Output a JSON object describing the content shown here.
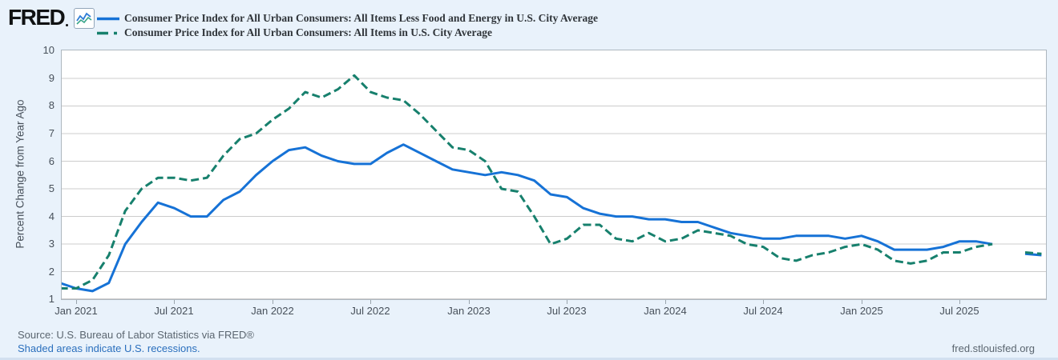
{
  "header": {
    "logo_text": "FRED",
    "logo_icon": "line-chart-icon"
  },
  "footer": {
    "source": "Source: U.S. Bureau of Labor Statistics via FRED®",
    "recession_note": "Shaded areas indicate U.S. recessions.",
    "site_url": "fred.stlouisfed.org"
  },
  "chart_data": {
    "type": "line",
    "title": "",
    "xlabel": "",
    "ylabel": "Percent Change from Year Ago",
    "ylim": [
      1,
      10
    ],
    "grid": true,
    "legend_position": "top-left",
    "background": {
      "page": "#e9f2fb",
      "plot": "#ffffff",
      "gridline": "#cccccc"
    },
    "y_tick_labels": [
      "1",
      "2",
      "3",
      "4",
      "5",
      "6",
      "7",
      "8",
      "9",
      "10"
    ],
    "x_tick_labels": [
      "Jan 2021",
      "Jul 2021",
      "Jan 2022",
      "Jul 2022",
      "Jan 2023",
      "Jul 2023",
      "Jan 2024",
      "Jul 2024",
      "Jan 2025",
      "Jul 2025"
    ],
    "data_gap_month": "2025-10",
    "x_months": [
      "2020-12",
      "2021-01",
      "2021-02",
      "2021-03",
      "2021-04",
      "2021-05",
      "2021-06",
      "2021-07",
      "2021-08",
      "2021-09",
      "2021-10",
      "2021-11",
      "2021-12",
      "2022-01",
      "2022-02",
      "2022-03",
      "2022-04",
      "2022-05",
      "2022-06",
      "2022-07",
      "2022-08",
      "2022-09",
      "2022-10",
      "2022-11",
      "2022-12",
      "2023-01",
      "2023-02",
      "2023-03",
      "2023-04",
      "2023-05",
      "2023-06",
      "2023-07",
      "2023-08",
      "2023-09",
      "2023-10",
      "2023-11",
      "2023-12",
      "2024-01",
      "2024-02",
      "2024-03",
      "2024-04",
      "2024-05",
      "2024-06",
      "2024-07",
      "2024-08",
      "2024-09",
      "2024-10",
      "2024-11",
      "2024-12",
      "2025-01",
      "2025-02",
      "2025-03",
      "2025-04",
      "2025-05",
      "2025-06",
      "2025-07",
      "2025-08",
      "2025-09",
      "2025-10",
      "2025-11",
      "2025-12"
    ],
    "series": [
      {
        "name": "Consumer Price Index for All Urban Consumers: All Items Less Food and Energy in U.S. City Average",
        "style": "solid",
        "color": "#1672d6",
        "values": [
          1.6,
          1.4,
          1.3,
          1.6,
          3.0,
          3.8,
          4.5,
          4.3,
          4.0,
          4.0,
          4.6,
          4.9,
          5.5,
          6.0,
          6.4,
          6.5,
          6.2,
          6.0,
          5.9,
          5.9,
          6.3,
          6.6,
          6.3,
          6.0,
          5.7,
          5.6,
          5.5,
          5.6,
          5.5,
          5.3,
          4.8,
          4.7,
          4.3,
          4.1,
          4.0,
          4.0,
          3.9,
          3.9,
          3.8,
          3.8,
          3.6,
          3.4,
          3.3,
          3.2,
          3.2,
          3.3,
          3.3,
          3.3,
          3.2,
          3.3,
          3.1,
          2.8,
          2.8,
          2.8,
          2.9,
          3.1,
          3.1,
          3.0,
          null,
          2.65,
          2.6
        ]
      },
      {
        "name": "Consumer Price Index for All Urban Consumers: All Items in U.S. City Average",
        "style": "dashed",
        "color": "#17806d",
        "values": [
          1.4,
          1.4,
          1.7,
          2.6,
          4.2,
          5.0,
          5.4,
          5.4,
          5.3,
          5.4,
          6.2,
          6.8,
          7.0,
          7.5,
          7.9,
          8.5,
          8.3,
          8.6,
          9.1,
          8.5,
          8.3,
          8.2,
          7.7,
          7.1,
          6.5,
          6.4,
          6.0,
          5.0,
          4.9,
          4.0,
          3.0,
          3.2,
          3.7,
          3.7,
          3.2,
          3.1,
          3.4,
          3.1,
          3.2,
          3.5,
          3.4,
          3.3,
          3.0,
          2.9,
          2.5,
          2.4,
          2.6,
          2.7,
          2.9,
          3.0,
          2.8,
          2.4,
          2.3,
          2.4,
          2.7,
          2.7,
          2.9,
          3.0,
          null,
          2.7,
          2.65
        ]
      }
    ]
  }
}
